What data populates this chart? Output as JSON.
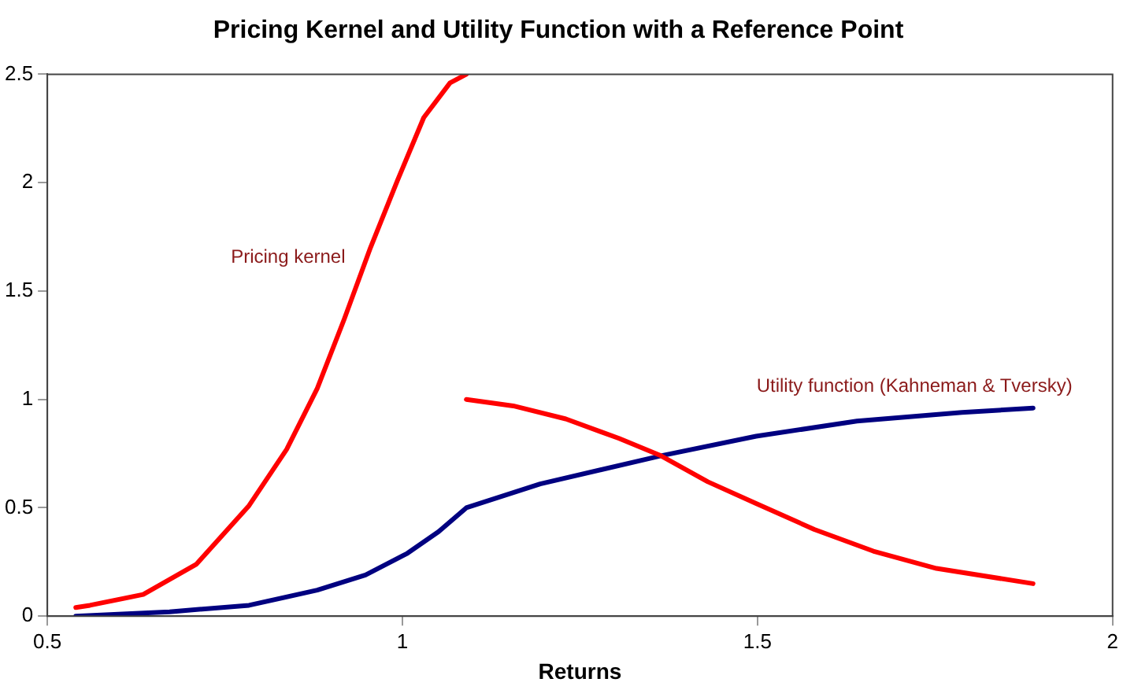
{
  "chart_data": {
    "type": "line",
    "title": "Pricing Kernel and Utility Function with a Reference Point",
    "xlabel": "Returns",
    "xlim": [
      0.5,
      2
    ],
    "xticks": [
      0.5,
      1,
      1.5,
      2
    ],
    "ylim": [
      0,
      2.5
    ],
    "yticks": [
      0,
      0.5,
      1,
      1.5,
      2,
      2.5
    ],
    "grid": false,
    "legend": false,
    "marker": "none",
    "line_style": "solid",
    "series": [
      {
        "name": "Pricing kernel",
        "color": "#ff0000",
        "x": [
          0.54,
          0.56,
          0.635,
          0.71,
          0.784,
          0.837,
          0.88,
          0.918,
          0.955,
          0.993,
          1.03,
          1.067,
          1.09
        ],
        "values": [
          0.04,
          0.05,
          0.1,
          0.24,
          0.51,
          0.77,
          1.05,
          1.37,
          1.7,
          2.01,
          2.3,
          2.46,
          2.5
        ]
      },
      {
        "color": "#ff0000",
        "x": [
          1.09,
          1.156,
          1.23,
          1.305,
          1.364,
          1.43,
          1.498,
          1.58,
          1.663,
          1.752,
          1.888
        ],
        "values": [
          1.0,
          0.97,
          0.91,
          0.82,
          0.74,
          0.62,
          0.52,
          0.4,
          0.3,
          0.22,
          0.15
        ]
      },
      {
        "name": "Utility function (Kahneman & Tversky)",
        "color": "#000080",
        "x": [
          0.54,
          0.672,
          0.784,
          0.88,
          0.948,
          1.007,
          1.051,
          1.09,
          1.194,
          1.364,
          1.498,
          1.64,
          1.788,
          1.888
        ],
        "values": [
          0,
          0.02,
          0.05,
          0.12,
          0.19,
          0.29,
          0.39,
          0.5,
          0.61,
          0.74,
          0.83,
          0.9,
          0.94,
          0.96
        ]
      }
    ]
  }
}
